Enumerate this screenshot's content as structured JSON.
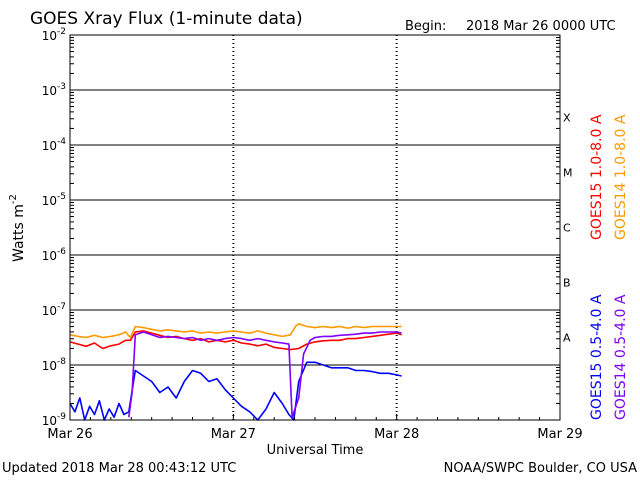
{
  "chart_data": {
    "type": "line",
    "title": "GOES Xray Flux (1-minute data)",
    "begin_label": "Begin:",
    "begin_value": "2018 Mar 26 0000 UTC",
    "ylabel": "Watts m",
    "ylabel_sup": "-2",
    "xlabel": "Universal Time",
    "y_scale": "log",
    "ylim": [
      1e-09,
      0.01
    ],
    "y_ticks": [
      {
        "base": "10",
        "exp": "-9",
        "value": -9
      },
      {
        "base": "10",
        "exp": "-8",
        "value": -8
      },
      {
        "base": "10",
        "exp": "-7",
        "value": -7
      },
      {
        "base": "10",
        "exp": "-6",
        "value": -6
      },
      {
        "base": "10",
        "exp": "-5",
        "value": -5
      },
      {
        "base": "10",
        "exp": "-4",
        "value": -4
      },
      {
        "base": "10",
        "exp": "-3",
        "value": -3
      },
      {
        "base": "10",
        "exp": "-2",
        "value": -2
      }
    ],
    "x_range_days": [
      0,
      3
    ],
    "x_ticks": [
      {
        "label": "Mar 26",
        "day": 0
      },
      {
        "label": "Mar 27",
        "day": 1
      },
      {
        "label": "Mar 28",
        "day": 2
      },
      {
        "label": "Mar 29",
        "day": 3
      }
    ],
    "flare_classes": [
      {
        "label": "A",
        "value": -7.5
      },
      {
        "label": "B",
        "value": -6.5
      },
      {
        "label": "C",
        "value": -5.5
      },
      {
        "label": "M",
        "value": -4.5
      },
      {
        "label": "X",
        "value": -3.5
      }
    ],
    "grid": "horizontal lines at each decade, dashed vertical lines at day boundaries",
    "legend": "right side, vertical text",
    "series": [
      {
        "name": "GOES15 1.0-8.0 A",
        "color": "#ff0000",
        "points": [
          [
            0.0,
            -7.58
          ],
          [
            0.05,
            -7.62
          ],
          [
            0.1,
            -7.66
          ],
          [
            0.15,
            -7.6
          ],
          [
            0.2,
            -7.7
          ],
          [
            0.25,
            -7.65
          ],
          [
            0.3,
            -7.62
          ],
          [
            0.34,
            -7.55
          ],
          [
            0.37,
            -7.55
          ],
          [
            0.4,
            -7.4
          ],
          [
            0.45,
            -7.38
          ],
          [
            0.5,
            -7.42
          ],
          [
            0.55,
            -7.46
          ],
          [
            0.6,
            -7.5
          ],
          [
            0.65,
            -7.48
          ],
          [
            0.7,
            -7.52
          ],
          [
            0.75,
            -7.55
          ],
          [
            0.8,
            -7.52
          ],
          [
            0.85,
            -7.58
          ],
          [
            0.9,
            -7.55
          ],
          [
            0.95,
            -7.58
          ],
          [
            1.0,
            -7.55
          ],
          [
            1.05,
            -7.6
          ],
          [
            1.1,
            -7.62
          ],
          [
            1.15,
            -7.65
          ],
          [
            1.2,
            -7.62
          ],
          [
            1.25,
            -7.68
          ],
          [
            1.3,
            -7.7
          ],
          [
            1.35,
            -7.72
          ],
          [
            1.4,
            -7.7
          ],
          [
            1.45,
            -7.62
          ],
          [
            1.5,
            -7.58
          ],
          [
            1.55,
            -7.56
          ],
          [
            1.6,
            -7.55
          ],
          [
            1.65,
            -7.55
          ],
          [
            1.7,
            -7.52
          ],
          [
            1.75,
            -7.52
          ],
          [
            1.8,
            -7.5
          ],
          [
            1.85,
            -7.48
          ],
          [
            1.9,
            -7.46
          ],
          [
            1.95,
            -7.44
          ],
          [
            2.0,
            -7.42
          ],
          [
            2.03,
            -7.45
          ]
        ]
      },
      {
        "name": "GOES14 1.0-8.0 A",
        "color": "#ff9900",
        "points": [
          [
            0.0,
            -7.45
          ],
          [
            0.05,
            -7.48
          ],
          [
            0.1,
            -7.5
          ],
          [
            0.15,
            -7.46
          ],
          [
            0.2,
            -7.5
          ],
          [
            0.25,
            -7.48
          ],
          [
            0.3,
            -7.45
          ],
          [
            0.34,
            -7.4
          ],
          [
            0.37,
            -7.5
          ],
          [
            0.4,
            -7.3
          ],
          [
            0.45,
            -7.32
          ],
          [
            0.5,
            -7.35
          ],
          [
            0.55,
            -7.38
          ],
          [
            0.6,
            -7.36
          ],
          [
            0.65,
            -7.38
          ],
          [
            0.7,
            -7.4
          ],
          [
            0.75,
            -7.38
          ],
          [
            0.8,
            -7.42
          ],
          [
            0.85,
            -7.4
          ],
          [
            0.9,
            -7.42
          ],
          [
            0.95,
            -7.4
          ],
          [
            1.0,
            -7.38
          ],
          [
            1.05,
            -7.4
          ],
          [
            1.1,
            -7.42
          ],
          [
            1.15,
            -7.38
          ],
          [
            1.2,
            -7.42
          ],
          [
            1.25,
            -7.45
          ],
          [
            1.3,
            -7.48
          ],
          [
            1.35,
            -7.45
          ],
          [
            1.38,
            -7.3
          ],
          [
            1.4,
            -7.25
          ],
          [
            1.45,
            -7.3
          ],
          [
            1.5,
            -7.32
          ],
          [
            1.55,
            -7.3
          ],
          [
            1.6,
            -7.32
          ],
          [
            1.65,
            -7.3
          ],
          [
            1.7,
            -7.33
          ],
          [
            1.75,
            -7.3
          ],
          [
            1.8,
            -7.32
          ],
          [
            1.85,
            -7.3
          ],
          [
            1.9,
            -7.3
          ],
          [
            1.95,
            -7.3
          ],
          [
            2.0,
            -7.3
          ],
          [
            2.03,
            -7.3
          ]
        ]
      },
      {
        "name": "GOES15 0.5-4.0 A",
        "color": "#0000ff",
        "points": [
          [
            0.0,
            -8.7
          ],
          [
            0.03,
            -8.85
          ],
          [
            0.06,
            -8.6
          ],
          [
            0.09,
            -9.0
          ],
          [
            0.12,
            -8.75
          ],
          [
            0.15,
            -8.9
          ],
          [
            0.18,
            -8.65
          ],
          [
            0.21,
            -9.0
          ],
          [
            0.24,
            -8.8
          ],
          [
            0.27,
            -8.95
          ],
          [
            0.3,
            -8.7
          ],
          [
            0.33,
            -8.9
          ],
          [
            0.36,
            -8.85
          ],
          [
            0.4,
            -8.1
          ],
          [
            0.45,
            -8.2
          ],
          [
            0.5,
            -8.3
          ],
          [
            0.55,
            -8.5
          ],
          [
            0.6,
            -8.4
          ],
          [
            0.65,
            -8.6
          ],
          [
            0.7,
            -8.3
          ],
          [
            0.75,
            -8.1
          ],
          [
            0.8,
            -8.15
          ],
          [
            0.85,
            -8.3
          ],
          [
            0.9,
            -8.25
          ],
          [
            0.95,
            -8.45
          ],
          [
            1.0,
            -8.6
          ],
          [
            1.05,
            -8.75
          ],
          [
            1.1,
            -8.85
          ],
          [
            1.15,
            -9.0
          ],
          [
            1.2,
            -8.8
          ],
          [
            1.25,
            -8.5
          ],
          [
            1.3,
            -8.7
          ],
          [
            1.34,
            -8.9
          ],
          [
            1.37,
            -9.0
          ],
          [
            1.4,
            -8.3
          ],
          [
            1.45,
            -7.95
          ],
          [
            1.5,
            -7.95
          ],
          [
            1.55,
            -8.0
          ],
          [
            1.6,
            -8.05
          ],
          [
            1.65,
            -8.05
          ],
          [
            1.7,
            -8.05
          ],
          [
            1.75,
            -8.1
          ],
          [
            1.8,
            -8.1
          ],
          [
            1.85,
            -8.12
          ],
          [
            1.9,
            -8.15
          ],
          [
            1.95,
            -8.15
          ],
          [
            2.0,
            -8.18
          ],
          [
            2.03,
            -8.2
          ]
        ]
      },
      {
        "name": "GOES14 0.5-4.0 A",
        "color": "#7f00ff",
        "points": [
          [
            0.36,
            -8.95
          ],
          [
            0.38,
            -8.5
          ],
          [
            0.4,
            -7.45
          ],
          [
            0.45,
            -7.4
          ],
          [
            0.5,
            -7.45
          ],
          [
            0.55,
            -7.5
          ],
          [
            0.6,
            -7.48
          ],
          [
            0.65,
            -7.5
          ],
          [
            0.7,
            -7.52
          ],
          [
            0.75,
            -7.5
          ],
          [
            0.8,
            -7.55
          ],
          [
            0.85,
            -7.52
          ],
          [
            0.9,
            -7.55
          ],
          [
            0.95,
            -7.52
          ],
          [
            1.0,
            -7.5
          ],
          [
            1.05,
            -7.52
          ],
          [
            1.1,
            -7.55
          ],
          [
            1.15,
            -7.52
          ],
          [
            1.2,
            -7.55
          ],
          [
            1.25,
            -7.58
          ],
          [
            1.3,
            -7.6
          ],
          [
            1.34,
            -7.62
          ],
          [
            1.36,
            -8.95
          ],
          [
            1.4,
            -8.6
          ],
          [
            1.43,
            -7.8
          ],
          [
            1.47,
            -7.55
          ],
          [
            1.5,
            -7.5
          ],
          [
            1.55,
            -7.48
          ],
          [
            1.6,
            -7.48
          ],
          [
            1.65,
            -7.46
          ],
          [
            1.7,
            -7.45
          ],
          [
            1.75,
            -7.44
          ],
          [
            1.8,
            -7.42
          ],
          [
            1.85,
            -7.42
          ],
          [
            1.9,
            -7.4
          ],
          [
            1.95,
            -7.4
          ],
          [
            2.0,
            -7.4
          ],
          [
            2.03,
            -7.42
          ]
        ]
      }
    ]
  },
  "footer": {
    "updated": "Updated 2018 Mar 28 00:43:12 UTC",
    "source": "NOAA/SWPC Boulder, CO USA"
  }
}
